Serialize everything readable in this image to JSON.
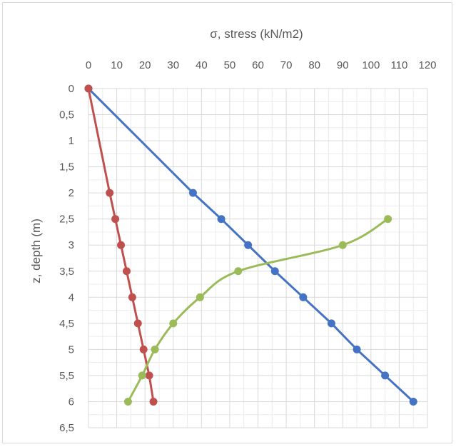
{
  "chart_data": {
    "type": "line",
    "title": "",
    "xlabel": "σ, stress (kN/m2)",
    "ylabel": "z, depth (m)",
    "x_axis_position": "top",
    "y_axis_inverted": true,
    "xlim": [
      0,
      120
    ],
    "ylim": [
      0,
      6.5
    ],
    "x_ticks": [
      0,
      10,
      20,
      30,
      40,
      50,
      60,
      70,
      80,
      90,
      100,
      110,
      120
    ],
    "y_ticks": [
      0,
      0.5,
      1,
      1.5,
      2,
      2.5,
      3,
      3.5,
      4,
      4.5,
      5,
      5.5,
      6,
      6.5
    ],
    "x_tick_labels": [
      "0",
      "10",
      "20",
      "30",
      "40",
      "50",
      "60",
      "70",
      "80",
      "90",
      "100",
      "110",
      "120"
    ],
    "y_tick_labels": [
      "0",
      "0,5",
      "1",
      "1,5",
      "2",
      "2,5",
      "3",
      "3,5",
      "4",
      "4,5",
      "5",
      "5,5",
      "6",
      "6,5"
    ],
    "grid": true,
    "legend": "none",
    "series": [
      {
        "color": "#4472c4",
        "smooth": false,
        "points": [
          [
            0,
            0
          ],
          [
            37,
            2
          ],
          [
            47,
            2.5
          ],
          [
            56.5,
            3
          ],
          [
            66,
            3.5
          ],
          [
            76,
            4
          ],
          [
            86,
            4.5
          ],
          [
            95,
            5
          ],
          [
            105,
            5.5
          ],
          [
            115,
            6
          ]
        ]
      },
      {
        "color": "#c0504d",
        "smooth": false,
        "points": [
          [
            0,
            0
          ],
          [
            7.5,
            2
          ],
          [
            9.5,
            2.5
          ],
          [
            11.5,
            3
          ],
          [
            13.5,
            3.5
          ],
          [
            15.5,
            4
          ],
          [
            17.5,
            4.5
          ],
          [
            19.5,
            5
          ],
          [
            21.5,
            5.5
          ],
          [
            23,
            6
          ]
        ]
      },
      {
        "color": "#9bbb59",
        "smooth": true,
        "points": [
          [
            106,
            2.5
          ],
          [
            90,
            3
          ],
          [
            53,
            3.5
          ],
          [
            39.5,
            4
          ],
          [
            30,
            4.5
          ],
          [
            23.5,
            5
          ],
          [
            19,
            5.5
          ],
          [
            14,
            6
          ]
        ]
      }
    ]
  }
}
